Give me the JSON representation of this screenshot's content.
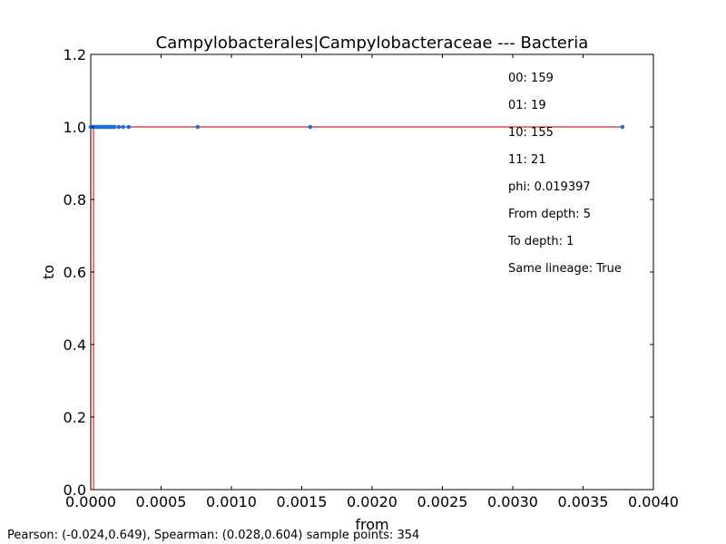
{
  "chart_data": {
    "type": "scatter",
    "title": "Campylobacterales|Campylobacteraceae --- Bacteria",
    "xlabel": "from",
    "ylabel": "to",
    "xlim": [
      0.0,
      0.004
    ],
    "ylim": [
      0.0,
      1.2
    ],
    "x_ticks": [
      "0.0000",
      "0.0005",
      "0.0010",
      "0.0015",
      "0.0020",
      "0.0025",
      "0.0030",
      "0.0035",
      "0.0040"
    ],
    "y_ticks": [
      "0.0",
      "0.2",
      "0.4",
      "0.6",
      "0.8",
      "1.0",
      "1.2"
    ],
    "grid": false,
    "colors": {
      "points": "#1f6fdc",
      "fit_line": "#e8211e",
      "axes": "#000000"
    },
    "points": [
      {
        "x": 0.0,
        "y": 1.0
      },
      {
        "x": 1e-05,
        "y": 1.0
      },
      {
        "x": 2e-05,
        "y": 1.0
      },
      {
        "x": 3e-05,
        "y": 1.0
      },
      {
        "x": 4e-05,
        "y": 1.0
      },
      {
        "x": 5e-05,
        "y": 1.0
      },
      {
        "x": 6e-05,
        "y": 1.0
      },
      {
        "x": 7e-05,
        "y": 1.0
      },
      {
        "x": 8e-05,
        "y": 1.0
      },
      {
        "x": 9e-05,
        "y": 1.0
      },
      {
        "x": 0.0001,
        "y": 1.0
      },
      {
        "x": 0.00011,
        "y": 1.0
      },
      {
        "x": 0.00012,
        "y": 1.0
      },
      {
        "x": 0.00013,
        "y": 1.0
      },
      {
        "x": 0.00014,
        "y": 1.0
      },
      {
        "x": 0.00015,
        "y": 1.0
      },
      {
        "x": 0.00016,
        "y": 1.0
      },
      {
        "x": 0.00017,
        "y": 1.0
      },
      {
        "x": 0.0002,
        "y": 1.0
      },
      {
        "x": 0.00023,
        "y": 1.0
      },
      {
        "x": 0.00027,
        "y": 1.0
      },
      {
        "x": 0.00076,
        "y": 1.0
      },
      {
        "x": 0.00156,
        "y": 1.0
      },
      {
        "x": 0.00378,
        "y": 1.0
      }
    ],
    "fit_lines": [
      {
        "x": [
          0.0,
          0.00378
        ],
        "y": [
          1.0,
          1.0
        ]
      },
      {
        "x": [
          2e-05,
          2e-05
        ],
        "y": [
          0.0,
          1.0
        ]
      }
    ],
    "annotations": [
      "00: 159",
      "01: 19",
      "10: 155",
      "11: 21",
      "phi: 0.019397",
      "From depth: 5",
      "To depth: 1",
      "Same lineage:  True"
    ]
  },
  "footer": "Pearson: (-0.024,0.649), Spearman: (0.028,0.604) sample points: 354"
}
